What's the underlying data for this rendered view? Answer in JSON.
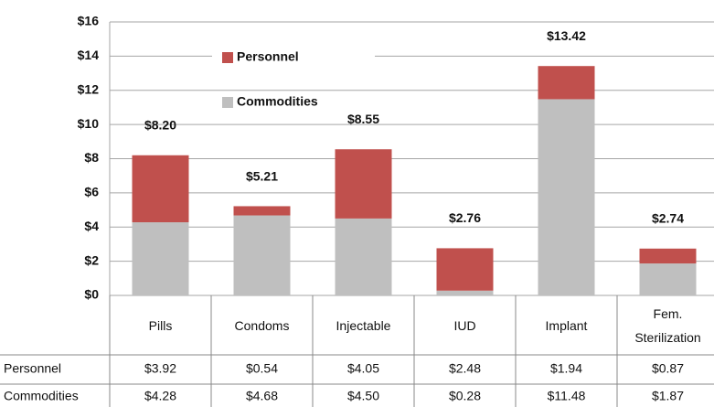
{
  "chart_data": {
    "type": "stacked_bar",
    "categories": [
      "Pills",
      "Condoms",
      "Injectable",
      "IUD",
      "Implant",
      "Fem. Sterilization"
    ],
    "series": [
      {
        "name": "Commodities",
        "color": "#bfbfbf",
        "values": [
          4.28,
          4.68,
          4.5,
          0.28,
          11.48,
          1.87
        ],
        "value_labels": [
          "$4.28",
          "$4.68",
          "$4.50",
          "$0.28",
          "$11.48",
          "$1.87"
        ]
      },
      {
        "name": "Personnel",
        "color": "#c0504d",
        "values": [
          3.92,
          0.54,
          4.05,
          2.48,
          1.94,
          0.87
        ],
        "value_labels": [
          "$3.92",
          "$0.54",
          "$4.05",
          "$2.48",
          "$1.94",
          "$0.87"
        ]
      }
    ],
    "totals": {
      "values": [
        8.2,
        5.21,
        8.55,
        2.76,
        13.42,
        2.74
      ],
      "value_labels": [
        "$8.20",
        "$5.21",
        "$8.55",
        "$2.76",
        "$13.42",
        "$2.74"
      ]
    },
    "ylim": [
      0,
      16
    ],
    "yticks": [
      {
        "value": 0,
        "label": "$0"
      },
      {
        "value": 2,
        "label": "$2"
      },
      {
        "value": 4,
        "label": "$4"
      },
      {
        "value": 6,
        "label": "$6"
      },
      {
        "value": 8,
        "label": "$8"
      },
      {
        "value": 10,
        "label": "$10"
      },
      {
        "value": 12,
        "label": "$12"
      },
      {
        "value": 14,
        "label": "$14"
      },
      {
        "value": 16,
        "label": "$16"
      }
    ],
    "grid": true
  }
}
